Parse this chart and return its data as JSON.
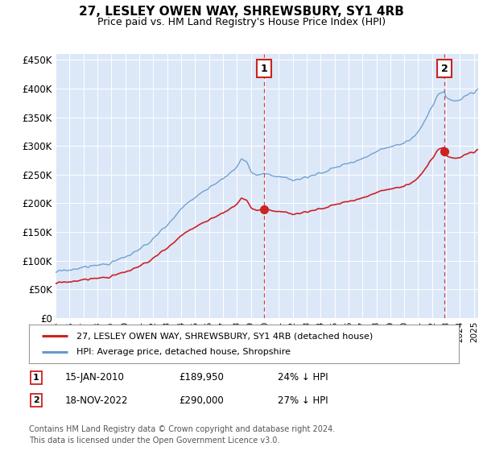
{
  "title": "27, LESLEY OWEN WAY, SHREWSBURY, SY1 4RB",
  "subtitle": "Price paid vs. HM Land Registry's House Price Index (HPI)",
  "ylabel_ticks": [
    "£0",
    "£50K",
    "£100K",
    "£150K",
    "£200K",
    "£250K",
    "£300K",
    "£350K",
    "£400K",
    "£450K"
  ],
  "ytick_vals": [
    0,
    50000,
    100000,
    150000,
    200000,
    250000,
    300000,
    350000,
    400000,
    450000
  ],
  "ylim": [
    0,
    460000
  ],
  "xlim_start": 1995.0,
  "xlim_end": 2025.3,
  "background_color": "#dce8f8",
  "plot_bg_color": "#dce8f8",
  "grid_color": "#ffffff",
  "hpi_color": "#6699cc",
  "price_color": "#cc2222",
  "sale1_x": 2009.96,
  "sale1_y": 189950,
  "sale2_x": 2022.88,
  "sale2_y": 290000,
  "legend_line1": "27, LESLEY OWEN WAY, SHREWSBURY, SY1 4RB (detached house)",
  "legend_line2": "HPI: Average price, detached house, Shropshire",
  "annotation1_num": "1",
  "annotation1_date": "15-JAN-2010",
  "annotation1_price": "£189,950",
  "annotation1_hpi": "24% ↓ HPI",
  "annotation2_num": "2",
  "annotation2_date": "18-NOV-2022",
  "annotation2_price": "£290,000",
  "annotation2_hpi": "27% ↓ HPI",
  "footnote": "Contains HM Land Registry data © Crown copyright and database right 2024.\nThis data is licensed under the Open Government Licence v3.0.",
  "title_fontsize": 11,
  "subtitle_fontsize": 9
}
